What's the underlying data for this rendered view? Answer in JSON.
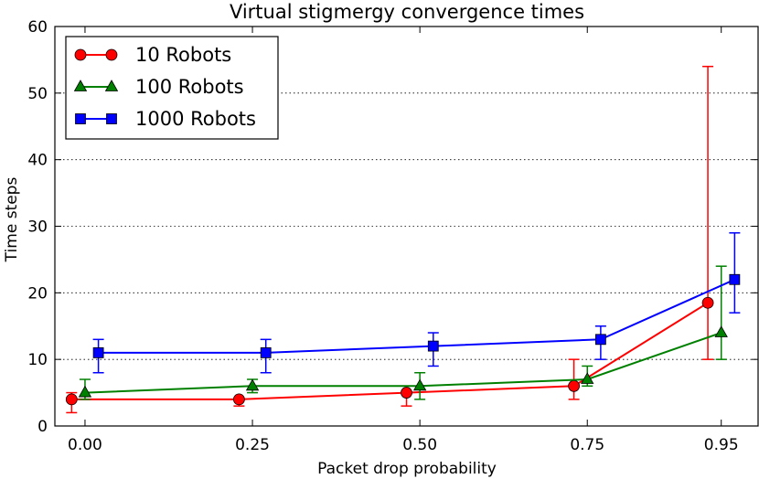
{
  "chart_data": {
    "type": "line",
    "title": "Virtual stigmergy convergence times",
    "xlabel": "Packet drop probability",
    "ylabel": "Time steps",
    "xticks": [
      "0.00",
      "0.25",
      "0.50",
      "0.75",
      "0.95"
    ],
    "ylim": [
      0,
      60
    ],
    "yticks": [
      0,
      10,
      20,
      30,
      40,
      50,
      60
    ],
    "grid": "horizontal dotted",
    "legend_position": "top-left",
    "series": [
      {
        "name": "10 Robots",
        "color": "#ff0000",
        "marker": "circle",
        "x": [
          -0.02,
          0.23,
          0.48,
          0.73,
          0.93
        ],
        "y": [
          4,
          4,
          5,
          6,
          18.5
        ],
        "err_low": [
          2,
          3,
          3,
          4,
          10
        ],
        "err_high": [
          5,
          4,
          6,
          10,
          54
        ]
      },
      {
        "name": "100 Robots",
        "color": "#008000",
        "marker": "triangle",
        "x": [
          0.0,
          0.25,
          0.5,
          0.75,
          0.95
        ],
        "y": [
          5,
          6,
          6,
          7,
          14
        ],
        "err_low": [
          4,
          5,
          4,
          6,
          10
        ],
        "err_high": [
          7,
          7,
          8,
          9,
          24
        ]
      },
      {
        "name": "1000 Robots",
        "color": "#0000ff",
        "marker": "square",
        "x": [
          0.02,
          0.27,
          0.52,
          0.77,
          0.97
        ],
        "y": [
          11,
          11,
          12,
          13,
          22
        ],
        "err_low": [
          8,
          8,
          9,
          10,
          17
        ],
        "err_high": [
          13,
          13,
          14,
          15,
          29
        ]
      }
    ]
  }
}
